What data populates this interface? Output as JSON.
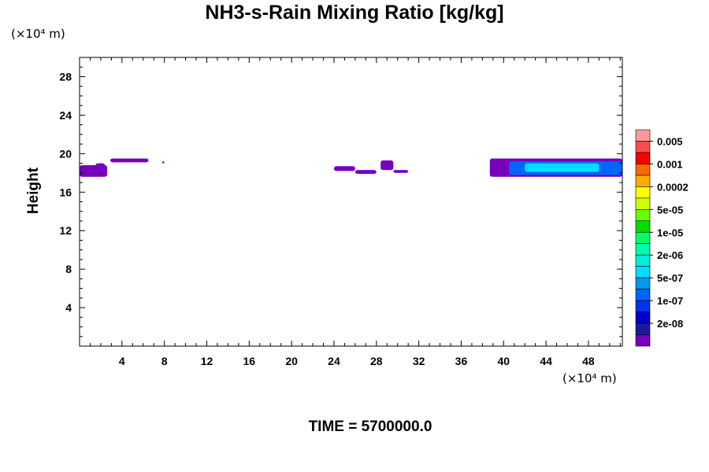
{
  "chart_data": {
    "type": "heatmap",
    "title": "NH3-s-Rain Mixing Ratio [kg/kg]",
    "ylabel": "Height",
    "xlabel": "",
    "x_unit": "(×10⁴ m)",
    "y_unit": "(×10⁴ m)",
    "xlim": [
      0,
      51.2
    ],
    "ylim": [
      0,
      30
    ],
    "x_ticks": [
      4,
      8,
      12,
      16,
      20,
      24,
      28,
      32,
      36,
      40,
      44,
      48
    ],
    "y_ticks": [
      4,
      8,
      12,
      16,
      20,
      24,
      28
    ],
    "grid": false,
    "colorbar": {
      "labels": [
        "0.005",
        "0.001",
        "0.0002",
        "5e-05",
        "1e-05",
        "2e-06",
        "5e-07",
        "1e-07",
        "2e-08"
      ],
      "colors": [
        "#ff9999",
        "#ff4d4d",
        "#ff0000",
        "#ff6600",
        "#ffaa00",
        "#ffff00",
        "#ccff00",
        "#66ff00",
        "#00dd00",
        "#00ff66",
        "#00ffaa",
        "#00eedd",
        "#00ddff",
        "#0099ee",
        "#0066ff",
        "#0033ee",
        "#0000cc",
        "#1a1aa0",
        "#7700bb"
      ]
    },
    "regions": [
      {
        "x_start": 0.0,
        "x_end": 2.6,
        "y_bottom": 17.6,
        "y_top": 18.8,
        "level": "2e-08"
      },
      {
        "x_start": 1.5,
        "x_end": 2.4,
        "y_bottom": 18.4,
        "y_top": 19.0,
        "level": "2e-08"
      },
      {
        "x_start": 2.9,
        "x_end": 6.5,
        "y_bottom": 19.1,
        "y_top": 19.5,
        "level": "2e-08"
      },
      {
        "x_start": 7.8,
        "x_end": 8.0,
        "y_bottom": 19.0,
        "y_top": 19.2,
        "level": "2e-08"
      },
      {
        "x_start": 24.0,
        "x_end": 26.0,
        "y_bottom": 18.2,
        "y_top": 18.7,
        "level": "2e-08"
      },
      {
        "x_start": 26.0,
        "x_end": 28.0,
        "y_bottom": 17.9,
        "y_top": 18.3,
        "level": "2e-08"
      },
      {
        "x_start": 28.4,
        "x_end": 29.6,
        "y_bottom": 18.3,
        "y_top": 19.3,
        "level": "2e-08"
      },
      {
        "x_start": 29.6,
        "x_end": 31.0,
        "y_bottom": 18.0,
        "y_top": 18.3,
        "level": "2e-08"
      },
      {
        "x_start": 38.7,
        "x_end": 51.2,
        "y_bottom": 17.6,
        "y_top": 19.5,
        "level": "2e-08"
      },
      {
        "x_start": 40.5,
        "x_end": 51.2,
        "y_bottom": 17.8,
        "y_top": 19.2,
        "level": "1e-07"
      },
      {
        "x_start": 42.0,
        "x_end": 49.0,
        "y_bottom": 18.1,
        "y_top": 19.0,
        "level": "5e-07"
      },
      {
        "x_start": 44.5,
        "x_end": 48.0,
        "y_bottom": 18.3,
        "y_top": 18.8,
        "level": "5e-07"
      }
    ]
  },
  "footer": {
    "time_label": "TIME = 5700000.0"
  }
}
